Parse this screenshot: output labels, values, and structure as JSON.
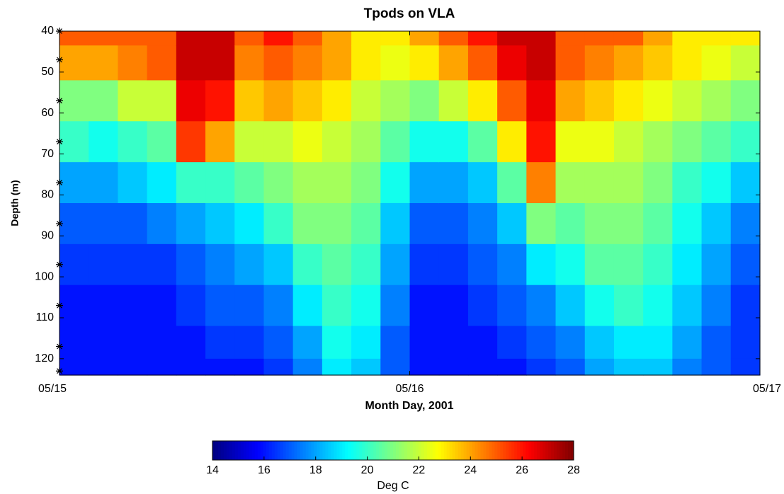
{
  "chart_data": {
    "type": "heatmap",
    "title": "Tpods on VLA",
    "xlabel": "Month Day, 2001",
    "ylabel": "Depth (m)",
    "x": [
      0,
      2,
      4,
      6,
      8,
      10,
      12,
      14,
      16,
      18,
      20,
      22,
      24,
      26,
      28,
      30,
      32,
      34,
      36,
      38,
      40,
      42,
      44,
      46
    ],
    "y": [
      40,
      47,
      57,
      67,
      77,
      87,
      97,
      107,
      117,
      123
    ],
    "values": [
      [
        25,
        24,
        21,
        20,
        18,
        17,
        16.5,
        16,
        16,
        16
      ],
      [
        25,
        24,
        21,
        19.5,
        18,
        17,
        16.5,
        16,
        16,
        16
      ],
      [
        25,
        24.5,
        22,
        20,
        18.5,
        17,
        16.5,
        16,
        16,
        16
      ],
      [
        25,
        25,
        22,
        20.5,
        19,
        17.5,
        16.5,
        16,
        16,
        16
      ],
      [
        27,
        27,
        26.5,
        25.5,
        20,
        18,
        17,
        16.5,
        16,
        16
      ],
      [
        27,
        27,
        26,
        24,
        20,
        18.5,
        17.5,
        17,
        16.5,
        16
      ],
      [
        25,
        24.5,
        23.5,
        22,
        20.5,
        19,
        18,
        17,
        16.5,
        16
      ],
      [
        26,
        25,
        24,
        22,
        21,
        20,
        18.5,
        17.5,
        17,
        16.5
      ],
      [
        25,
        24.5,
        23.5,
        22.5,
        21.5,
        21,
        20,
        19,
        18,
        17.5
      ],
      [
        24,
        24,
        23,
        22,
        21.5,
        21,
        20.5,
        20,
        19.5,
        19
      ],
      [
        23,
        23,
        22,
        21.5,
        21,
        20.5,
        20,
        19.5,
        19,
        18.5
      ],
      [
        23,
        22.5,
        21.5,
        20.5,
        19.5,
        18.5,
        18,
        17.5,
        17,
        17
      ],
      [
        24,
        23,
        21,
        19.5,
        18,
        17,
        16.5,
        16,
        16,
        16
      ],
      [
        25,
        24,
        22,
        19.5,
        18,
        17,
        16.5,
        16,
        16,
        16
      ],
      [
        26,
        25,
        23,
        20.5,
        18.5,
        17.5,
        17,
        16.5,
        16,
        16
      ],
      [
        27,
        26.5,
        25,
        23,
        20.5,
        18.5,
        17.5,
        17,
        16.5,
        16
      ],
      [
        27,
        27,
        26.5,
        26,
        24.5,
        21,
        19,
        17.5,
        17,
        16.5
      ],
      [
        25,
        25,
        24,
        22.5,
        21.5,
        20.5,
        19.5,
        18.5,
        17.5,
        17
      ],
      [
        25,
        24.5,
        23.5,
        22.5,
        21.5,
        21,
        20.5,
        19.5,
        18.5,
        18
      ],
      [
        25,
        24,
        23,
        22,
        21.5,
        21,
        20.5,
        20,
        19,
        18.5
      ],
      [
        24,
        23.5,
        22.5,
        21.5,
        21,
        20.5,
        20,
        19.5,
        19,
        18.5
      ],
      [
        23,
        23,
        22,
        21,
        20,
        19.5,
        19,
        18.5,
        18,
        17.5
      ],
      [
        23,
        22.5,
        21.5,
        20.5,
        19.5,
        18.5,
        18,
        17.5,
        17,
        17
      ],
      [
        23,
        22,
        21,
        20,
        18.5,
        17.5,
        17,
        16.5,
        16.5,
        16.5
      ]
    ],
    "xlim": [
      0,
      48
    ],
    "xticks": [
      {
        "value": 0,
        "label": "05/15"
      },
      {
        "value": 24,
        "label": "05/16"
      },
      {
        "value": 48,
        "label": "05/17"
      }
    ],
    "ylim": [
      40,
      124
    ],
    "yticks": [
      40,
      50,
      60,
      70,
      80,
      90,
      100,
      110,
      120
    ],
    "y_reversed": true,
    "colormap": "jet",
    "colorbar": {
      "label": "Deg C",
      "clim": [
        14,
        28
      ],
      "ticks": [
        14,
        16,
        18,
        20,
        22,
        24,
        26,
        28
      ]
    }
  }
}
